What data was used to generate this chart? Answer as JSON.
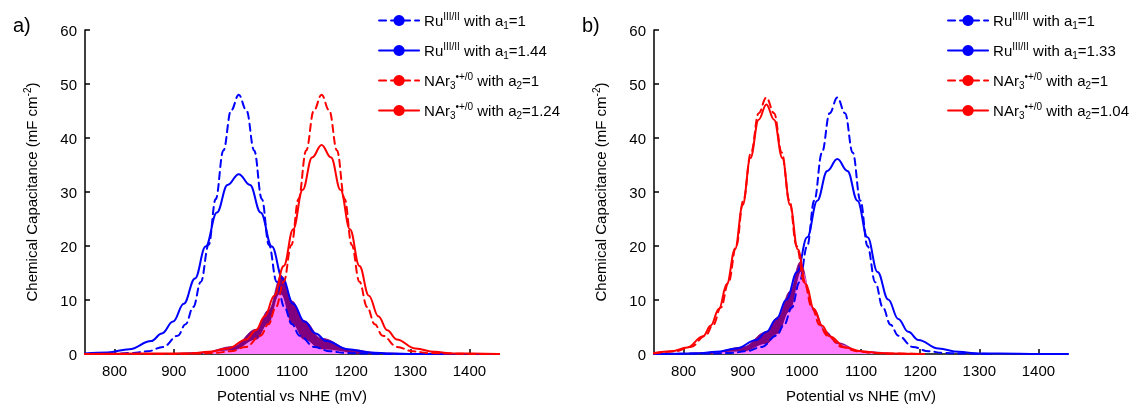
{
  "chart_data": [
    {
      "type": "line",
      "title": "a)",
      "xlabel": "Potential vs NHE (mV)",
      "ylabel": "Chemical Capacitance (mF cm$^{-2}$)",
      "xlim": [
        750,
        1450
      ],
      "xticks": [
        800,
        900,
        1000,
        1100,
        1200,
        1300,
        1400
      ],
      "ylim": [
        0,
        60
      ],
      "yticks": [
        0,
        10,
        20,
        30,
        40,
        50,
        60
      ],
      "grid": false,
      "legend": "top right",
      "marker": "none",
      "series": [
        {
          "type": "area",
          "color": "#800080",
          "x": [
            900,
            950,
            1000,
            1040,
            1060,
            1082,
            1100,
            1120,
            1150,
            1200,
            1250,
            1300
          ],
          "values": [
            0.1,
            0.3,
            1.4,
            4.6,
            8.1,
            14.5,
            9.8,
            6.2,
            2.9,
            0.8,
            0.2,
            0
          ]
        },
        {
          "type": "area",
          "color": "#ff80ff",
          "x": [
            950,
            1000,
            1040,
            1060,
            1080,
            1100,
            1120,
            1150,
            1200
          ],
          "values": [
            0.1,
            0.6,
            2.6,
            5.5,
            11.1,
            5.5,
            2.6,
            0.8,
            0.1
          ]
        },
        {
          "name": "Ru$^{III/II}$ with a$_{1}$=1",
          "color": "#0000ff",
          "line_style": "dashed",
          "x": [
            750,
            804,
            830,
            856,
            882,
            907,
            920,
            933,
            946,
            959,
            971,
            984,
            997,
            1010,
            1023,
            1036,
            1049,
            1061,
            1074,
            1087,
            1100,
            1113,
            1138,
            1164,
            1190,
            1216,
            1267,
            1450
          ],
          "values": [
            0,
            0.1,
            0.2,
            0.5,
            1.3,
            3.4,
            5.5,
            8.7,
            13.4,
            20.2,
            28.7,
            37.7,
            45.1,
            48,
            45.1,
            37.7,
            28.7,
            20.2,
            13.4,
            8.7,
            5.5,
            3.4,
            1.3,
            0.5,
            0.2,
            0.1,
            0,
            0
          ]
        },
        {
          "name": "Ru$^{III/II}$ with a$_{1}$=1.44",
          "color": "#0000ff",
          "line_style": "solid",
          "x": [
            750,
            788,
            825,
            862,
            880,
            899,
            917,
            936,
            954,
            973,
            991,
            1010,
            1029,
            1047,
            1066,
            1084,
            1102,
            1121,
            1140,
            1158,
            1195,
            1232,
            1269,
            1306,
            1450
          ],
          "values": [
            0.1,
            0.3,
            0.9,
            2.4,
            3.8,
            6.0,
            9.3,
            14.0,
            19.9,
            26.2,
            31.3,
            33.3,
            31.3,
            26.2,
            19.9,
            14.0,
            9.3,
            6.0,
            3.8,
            2.4,
            0.9,
            0.3,
            0.1,
            0,
            0
          ]
        },
        {
          "name": "NAr$_{3}$$^{•+/0}$ with a$_{2}$=1",
          "color": "#ff0000",
          "line_style": "dashed",
          "x": [
            750,
            893,
            944,
            970,
            996,
            1022,
            1047,
            1060,
            1073,
            1086,
            1099,
            1111,
            1124,
            1137,
            1150,
            1163,
            1176,
            1189,
            1201,
            1214,
            1227,
            1240,
            1253,
            1278,
            1304,
            1330,
            1356,
            1407,
            1450
          ],
          "values": [
            0,
            0,
            0.1,
            0.2,
            0.5,
            1.3,
            3.4,
            5.5,
            8.7,
            13.4,
            20.2,
            28.7,
            37.7,
            45.1,
            48,
            45.1,
            37.7,
            28.7,
            20.2,
            13.4,
            8.7,
            5.5,
            3.4,
            1.3,
            0.5,
            0.2,
            0.1,
            0,
            0
          ]
        },
        {
          "name": "NAr$_{3}$$^{•+/0}$ with a$_{2}$=1.24",
          "color": "#ff0000",
          "line_style": "solid",
          "x": [
            750,
            895,
            927,
            959,
            991,
            1023,
            1039,
            1054,
            1070,
            1086,
            1102,
            1118,
            1134,
            1150,
            1166,
            1182,
            1198,
            1214,
            1230,
            1246,
            1261,
            1277,
            1309,
            1341,
            1373,
            1405,
            1450
          ],
          "values": [
            0,
            0.1,
            0.1,
            0.4,
            1.0,
            2.7,
            4.4,
            7.0,
            10.8,
            16.3,
            23.1,
            30.4,
            36.4,
            38.7,
            36.4,
            30.4,
            23.1,
            16.3,
            10.8,
            7.0,
            4.4,
            2.7,
            1.0,
            0.4,
            0.1,
            0.1,
            0
          ]
        }
      ]
    },
    {
      "type": "line",
      "title": "b)",
      "xlabel": "Potential vs NHE (mV)",
      "ylabel": "Chemical Capacitance (mF cm$^{-2}$)",
      "xlim": [
        750,
        1450
      ],
      "xticks": [
        800,
        900,
        1000,
        1100,
        1200,
        1300,
        1400
      ],
      "ylim": [
        0,
        60
      ],
      "yticks": [
        0,
        10,
        20,
        30,
        40,
        50,
        60
      ],
      "grid": false,
      "legend": "top right",
      "marker": "none",
      "series": [
        {
          "type": "area",
          "color": "#800080",
          "x": [
            800,
            850,
            900,
            940,
            960,
            980,
            997,
            1020,
            1040,
            1060,
            1100,
            1150
          ],
          "values": [
            0.1,
            0.3,
            1.3,
            4.1,
            6.9,
            11.6,
            17,
            8.4,
            4.2,
            2.1,
            0.5,
            0.1
          ]
        },
        {
          "type": "area",
          "color": "#ff80ff",
          "x": [
            850,
            900,
            940,
            960,
            980,
            1000,
            1020,
            1040,
            1060,
            1100,
            1150
          ],
          "values": [
            0.1,
            0.4,
            1.8,
            3.7,
            7.9,
            15.3,
            7.9,
            3.7,
            1.8,
            0.4,
            0.1
          ]
        },
        {
          "name": "Ru$^{III/II}$ with a$_{1}$=1",
          "color": "#0000ff",
          "line_style": "dashed",
          "x": [
            750,
            854,
            880,
            906,
            932,
            957,
            970,
            983,
            996,
            1009,
            1021,
            1034,
            1047,
            1060,
            1073,
            1086,
            1099,
            1111,
            1124,
            1137,
            1150,
            1163,
            1188,
            1214,
            1240,
            1266,
            1317
          ],
          "values": [
            0,
            0.1,
            0.2,
            0.5,
            1.3,
            3.4,
            5.4,
            8.6,
            13.3,
            20.0,
            28.4,
            37.3,
            44.6,
            47.5,
            44.6,
            37.3,
            28.4,
            20.0,
            13.3,
            8.6,
            5.4,
            3.4,
            1.3,
            0.5,
            0.2,
            0.1,
            0
          ]
        },
        {
          "name": "Ru$^{III/II}$ with a$_{1}$=1.33",
          "color": "#0000ff",
          "line_style": "solid",
          "x": [
            750,
            821,
            855,
            889,
            923,
            940,
            957,
            974,
            992,
            1009,
            1026,
            1043,
            1060,
            1077,
            1094,
            1111,
            1128,
            1146,
            1163,
            1180,
            1197,
            1231,
            1265,
            1299,
            1334,
            1402,
            1450
          ],
          "values": [
            0,
            0.1,
            0.4,
            1.0,
            2.6,
            4.1,
            6.5,
            10.1,
            15.2,
            21.6,
            28.4,
            33.9,
            36.1,
            33.9,
            28.4,
            21.6,
            15.2,
            10.1,
            6.5,
            4.1,
            2.6,
            1.0,
            0.4,
            0.1,
            0.1,
            0,
            0
          ]
        },
        {
          "name": "NAr$_{3}$$^{•+/0}$ with a$_{2}$=1",
          "color": "#ff0000",
          "line_style": "dashed",
          "x": [
            750,
            786,
            812,
            837,
            850,
            863,
            876,
            889,
            901,
            914,
            927,
            940,
            953,
            966,
            979,
            991,
            1004,
            1017,
            1030,
            1043,
            1068,
            1094,
            1120,
            1146,
            1197
          ],
          "values": [
            0.1,
            0.5,
            1.3,
            3.4,
            5.4,
            8.6,
            13.3,
            20.0,
            28.4,
            37.3,
            44.6,
            47.5,
            44.6,
            37.3,
            28.4,
            20.0,
            13.3,
            8.6,
            5.4,
            3.4,
            1.3,
            0.5,
            0.2,
            0.1,
            0
          ]
        },
        {
          "name": "NAr$_{3}$$^{•+/0}$ with a$_{2}$=1.04",
          "color": "#ff0000",
          "line_style": "solid",
          "x": [
            750,
            780,
            806,
            833,
            846,
            860,
            873,
            887,
            900,
            913,
            927,
            940,
            953,
            967,
            980,
            993,
            1007,
            1020,
            1034,
            1047,
            1074,
            1100,
            1127,
            1154,
            1207
          ],
          "values": [
            0.2,
            0.5,
            1.2,
            3.3,
            5.3,
            8.4,
            12.9,
            19.4,
            27.6,
            36.3,
            43.4,
            46.2,
            43.4,
            36.3,
            27.6,
            19.4,
            12.9,
            8.4,
            5.3,
            3.3,
            1.2,
            0.5,
            0.2,
            0.1,
            0
          ]
        }
      ]
    }
  ]
}
